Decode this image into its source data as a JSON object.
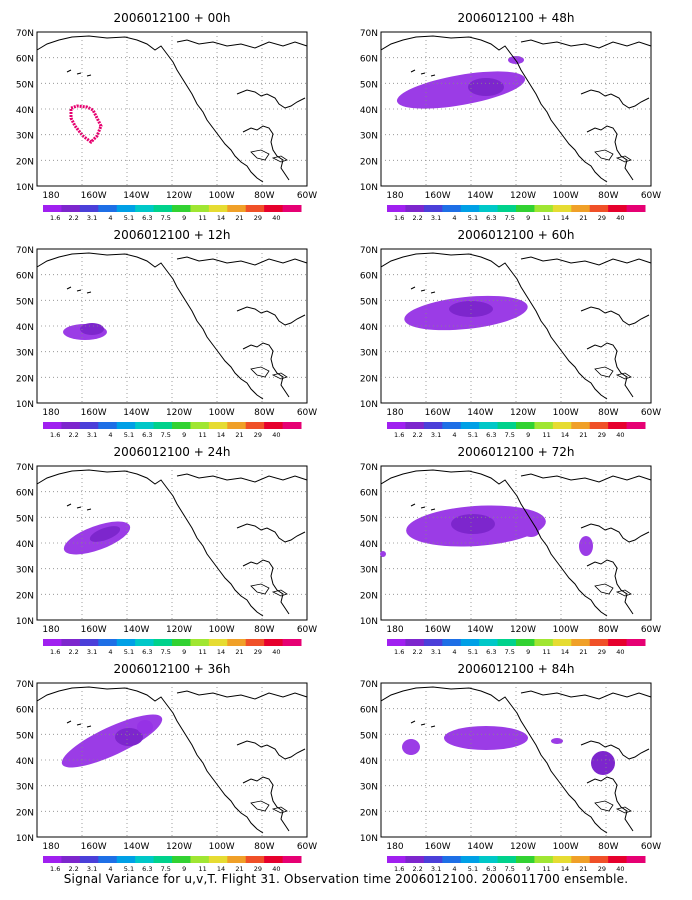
{
  "figure": {
    "caption": "Signal Variance for u,v,T. Flight 31. Observation time 2006012100. 2006011700 ensemble."
  },
  "axes": {
    "lat_labels": [
      "70N",
      "60N",
      "50N",
      "40N",
      "30N",
      "20N",
      "10N"
    ],
    "lon_labels": [
      "180",
      "160W",
      "140W",
      "120W",
      "100W",
      "80W",
      "60W"
    ]
  },
  "colorbar": {
    "levels": [
      "1.6",
      "2.2",
      "3.1",
      "4",
      "5.1",
      "6.3",
      "7.5",
      "9",
      "11",
      "14",
      "21",
      "29",
      "40"
    ],
    "colors": [
      "#a020f0",
      "#7d26cd",
      "#4b3fd9",
      "#1e6fe6",
      "#00a0e6",
      "#00c8c8",
      "#00d28c",
      "#32d232",
      "#a0e632",
      "#e6dc32",
      "#f0a028",
      "#f05028",
      "#e6002d",
      "#e60073"
    ]
  },
  "panels": [
    {
      "title": "2006012100 + 00h"
    },
    {
      "title": "2006012100 + 12h"
    },
    {
      "title": "2006012100 + 24h"
    },
    {
      "title": "2006012100 + 36h"
    },
    {
      "title": "2006012100 + 48h"
    },
    {
      "title": "2006012100 + 60h"
    },
    {
      "title": "2006012100 + 72h"
    },
    {
      "title": "2006012100 + 84h"
    }
  ]
}
